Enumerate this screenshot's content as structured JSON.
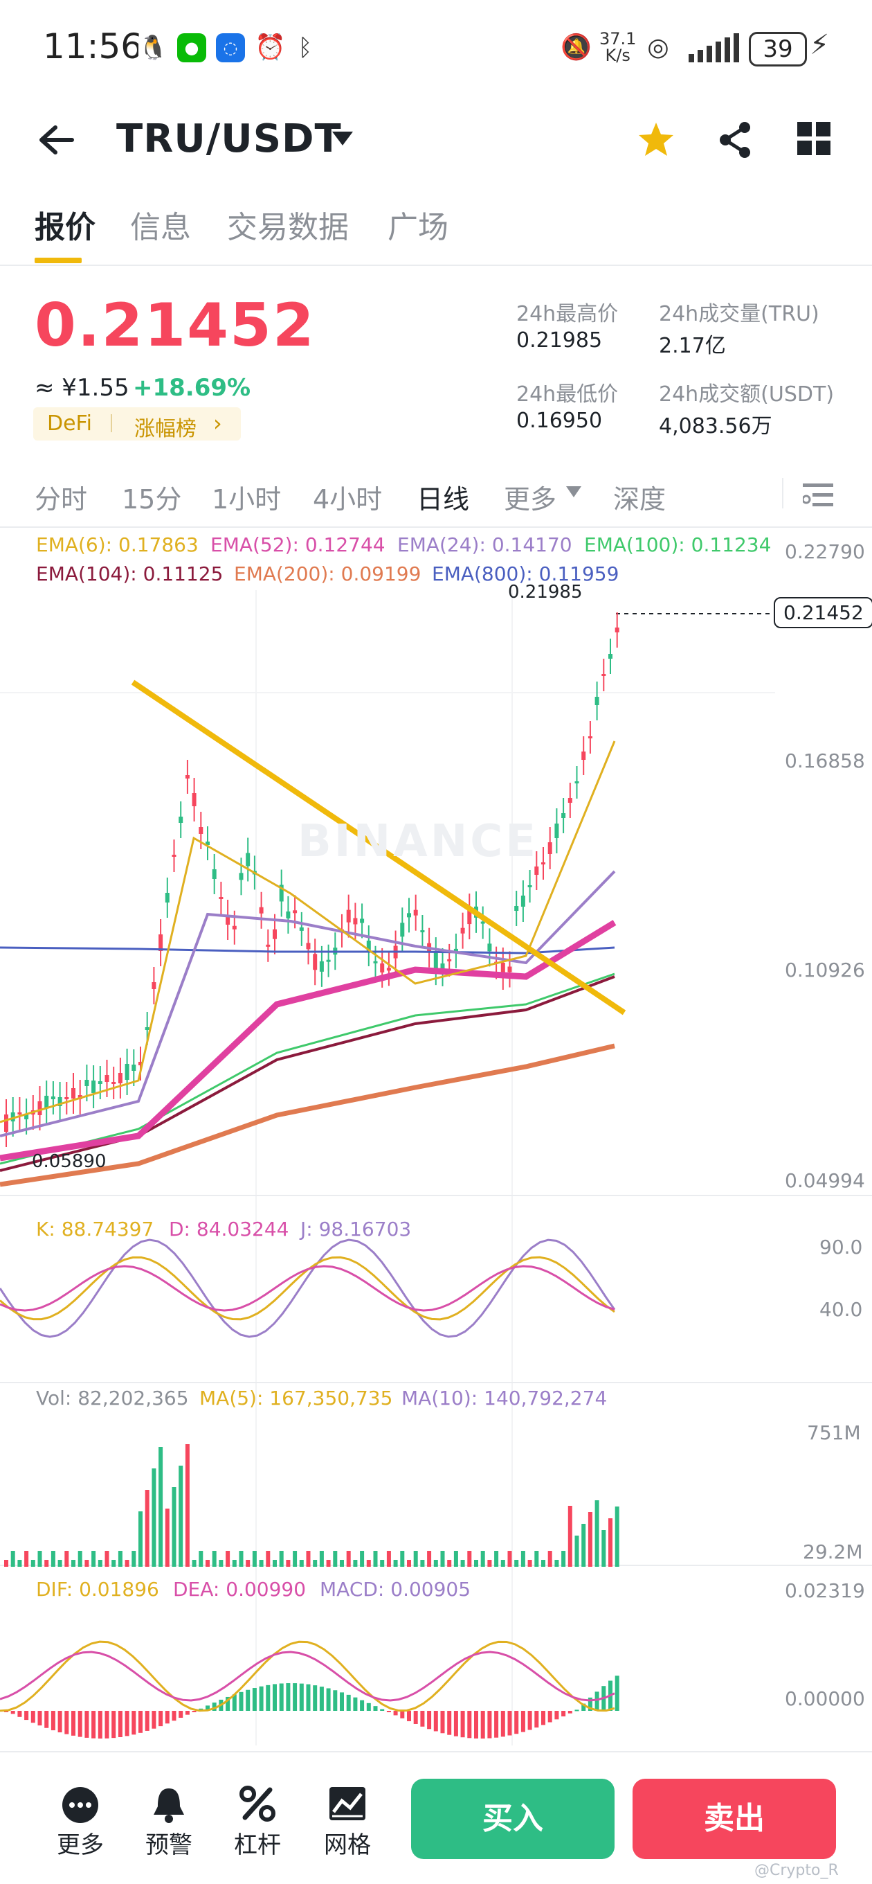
{
  "status_bar": {
    "time": "11:56",
    "net_speed_value": "37.1",
    "net_speed_unit": "K/s",
    "battery": "39"
  },
  "header": {
    "pair": "TRU/USDT",
    "back_icon": "arrow-left-icon",
    "favorite_icon": "star-icon",
    "share_icon": "share-icon",
    "grid_icon": "grid-icon",
    "accent_color": "#f0b90b"
  },
  "tabs": [
    {
      "label": "报价",
      "active": true
    },
    {
      "label": "信息",
      "active": false
    },
    {
      "label": "交易数据",
      "active": false
    },
    {
      "label": "广场",
      "active": false
    }
  ],
  "ticker": {
    "last_price": "0.21452",
    "approx_cny": "≈ ¥1.55",
    "change_pct": "+18.69%",
    "tag_category": "DeFi",
    "tag_rank": "涨幅榜",
    "high_label": "24h最高价",
    "high_value": "0.21985",
    "vol_label": "24h成交量(TRU)",
    "vol_value": "2.17亿",
    "low_label": "24h最低价",
    "low_value": "0.16950",
    "turnover_label": "24h成交额(USDT)",
    "turnover_value": "4,083.56万",
    "up_color": "#2ebd85",
    "down_color": "#f6465d"
  },
  "timeframes": [
    {
      "label": "分时",
      "active": false
    },
    {
      "label": "15分",
      "active": false
    },
    {
      "label": "1小时",
      "active": false
    },
    {
      "label": "4小时",
      "active": false
    },
    {
      "label": "日线",
      "active": true
    },
    {
      "label": "更多",
      "active": false
    },
    {
      "label": "深度",
      "active": false
    }
  ],
  "chart_data": {
    "type": "candlestick",
    "watermark": "BINANCE",
    "ema": [
      {
        "name": "EMA(6)",
        "value": "0.17863",
        "color": "#e0b020"
      },
      {
        "name": "EMA(52)",
        "value": "0.12744",
        "color": "#d84fa8"
      },
      {
        "name": "EMA(24)",
        "value": "0.14170",
        "color": "#9b7ec8"
      },
      {
        "name": "EMA(100)",
        "value": "0.11234",
        "color": "#3fc96b"
      },
      {
        "name": "EMA(104)",
        "value": "0.11125",
        "color": "#8b1a3c"
      },
      {
        "name": "EMA(200)",
        "value": "0.09199",
        "color": "#e07a50"
      },
      {
        "name": "EMA(800)",
        "value": "0.11959",
        "color": "#4a5fc0"
      }
    ],
    "price_axis": [
      "0.22790",
      "0.16858",
      "0.10926",
      "0.04994"
    ],
    "price_range": [
      0.04994,
      0.2279
    ],
    "current_price_label": "0.21452",
    "high_marker": "0.21985",
    "low_marker": "0.05890",
    "kdj": {
      "k": "K: 88.74397",
      "d": "D: 84.03244",
      "j": "J: 98.16703",
      "axis": [
        "90.0",
        "40.0"
      ]
    },
    "volume": {
      "vol": "Vol: 82,202,365",
      "ma5": "MA(5): 167,350,735",
      "ma10": "MA(10): 140,792,274",
      "axis": [
        "751M",
        "29.2M"
      ]
    },
    "macd": {
      "dif": "DIF: 0.01896",
      "dea": "DEA: 0.00990",
      "macd": "MACD: 0.00905",
      "axis": [
        "0.02319",
        "0.00000"
      ]
    }
  },
  "bottom_bar": {
    "items": [
      {
        "label": "更多",
        "icon": "more-icon"
      },
      {
        "label": "预警",
        "icon": "bell-icon"
      },
      {
        "label": "杠杆",
        "icon": "percent-icon"
      },
      {
        "label": "网格",
        "icon": "grid-chart-icon"
      }
    ],
    "buy_label": "买入",
    "sell_label": "卖出",
    "buy_color": "#2ebd85",
    "sell_color": "#f6465d"
  },
  "watermark_corner": "@Crypto_R"
}
